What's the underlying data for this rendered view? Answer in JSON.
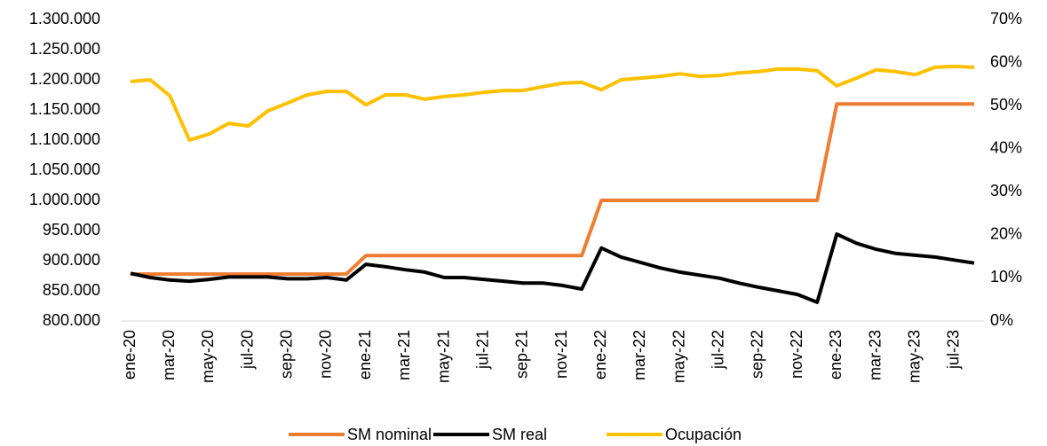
{
  "chart_data": {
    "type": "line",
    "categories": [
      "ene-20",
      null,
      "mar-20",
      null,
      "may-20",
      null,
      "jul-20",
      null,
      "sep-20",
      null,
      "nov-20",
      null,
      "ene-21",
      null,
      "mar-21",
      null,
      "may-21",
      null,
      "jul-21",
      null,
      "sep-21",
      null,
      "nov-21",
      null,
      "ene-22",
      null,
      "mar-22",
      null,
      "may-22",
      null,
      "jul-22",
      null,
      "sep-22",
      null,
      "nov-22",
      null,
      "ene-23",
      null,
      "mar-23",
      null,
      "may-23",
      null,
      "jul-23",
      null
    ],
    "series": [
      {
        "name": "SM nominal",
        "color": "#ED7D31",
        "axis": "y",
        "values": [
          877803,
          877803,
          877803,
          877803,
          877803,
          877803,
          877803,
          877803,
          877803,
          877803,
          877803,
          877803,
          908526,
          908526,
          908526,
          908526,
          908526,
          908526,
          908526,
          908526,
          908526,
          908526,
          908526,
          908526,
          1000000,
          1000000,
          1000000,
          1000000,
          1000000,
          1000000,
          1000000,
          1000000,
          1000000,
          1000000,
          1000000,
          1000000,
          1160000,
          1160000,
          1160000,
          1160000,
          1160000,
          1160000,
          1160000,
          1160000
        ]
      },
      {
        "name": "SM real",
        "color": "#000000",
        "axis": "y",
        "values": [
          879000,
          872000,
          868000,
          866000,
          869000,
          873000,
          873000,
          873000,
          870000,
          870000,
          872000,
          868000,
          894000,
          890000,
          885000,
          881000,
          872000,
          872000,
          869000,
          866000,
          863000,
          863000,
          859000,
          853000,
          921000,
          906000,
          897000,
          888000,
          881000,
          876000,
          871000,
          863000,
          856000,
          850000,
          844000,
          831000,
          944000,
          929000,
          919000,
          912000,
          909000,
          906000,
          901000,
          896000
        ]
      },
      {
        "name": "Ocupación",
        "color": "#FFC000",
        "axis": "y2",
        "values": [
          55.6,
          56.0,
          52.3,
          42.0,
          43.4,
          45.9,
          45.3,
          48.8,
          50.6,
          52.5,
          53.3,
          53.3,
          50.2,
          52.5,
          52.5,
          51.5,
          52.1,
          52.5,
          53.1,
          53.5,
          53.5,
          54.4,
          55.2,
          55.4,
          53.7,
          56.0,
          56.4,
          56.8,
          57.4,
          56.8,
          57.0,
          57.6,
          57.9,
          58.5,
          58.5,
          58.1,
          54.6,
          56.4,
          58.3,
          57.9,
          57.2,
          58.9,
          59.1,
          58.9
        ]
      }
    ],
    "ylim": [
      800000,
      1300000
    ],
    "yticks": [
      {
        "value": 800000,
        "label": "800.000"
      },
      {
        "value": 850000,
        "label": "850.000"
      },
      {
        "value": 900000,
        "label": "900.000"
      },
      {
        "value": 950000,
        "label": "950.000"
      },
      {
        "value": 1000000,
        "label": "1.000.000"
      },
      {
        "value": 1050000,
        "label": "1.050.000"
      },
      {
        "value": 1100000,
        "label": "1.100.000"
      },
      {
        "value": 1150000,
        "label": "1.150.000"
      },
      {
        "value": 1200000,
        "label": "1.200.000"
      },
      {
        "value": 1250000,
        "label": "1.250.000"
      },
      {
        "value": 1300000,
        "label": "1.300.000"
      }
    ],
    "y2lim": [
      0,
      70
    ],
    "y2ticks": [
      {
        "value": 0,
        "label": "0%"
      },
      {
        "value": 10,
        "label": "10%"
      },
      {
        "value": 20,
        "label": "20%"
      },
      {
        "value": 30,
        "label": "30%"
      },
      {
        "value": 40,
        "label": "40%"
      },
      {
        "value": 50,
        "label": "50%"
      },
      {
        "value": 60,
        "label": "60%"
      },
      {
        "value": 70,
        "label": "70%"
      }
    ],
    "legend": "bottom"
  }
}
